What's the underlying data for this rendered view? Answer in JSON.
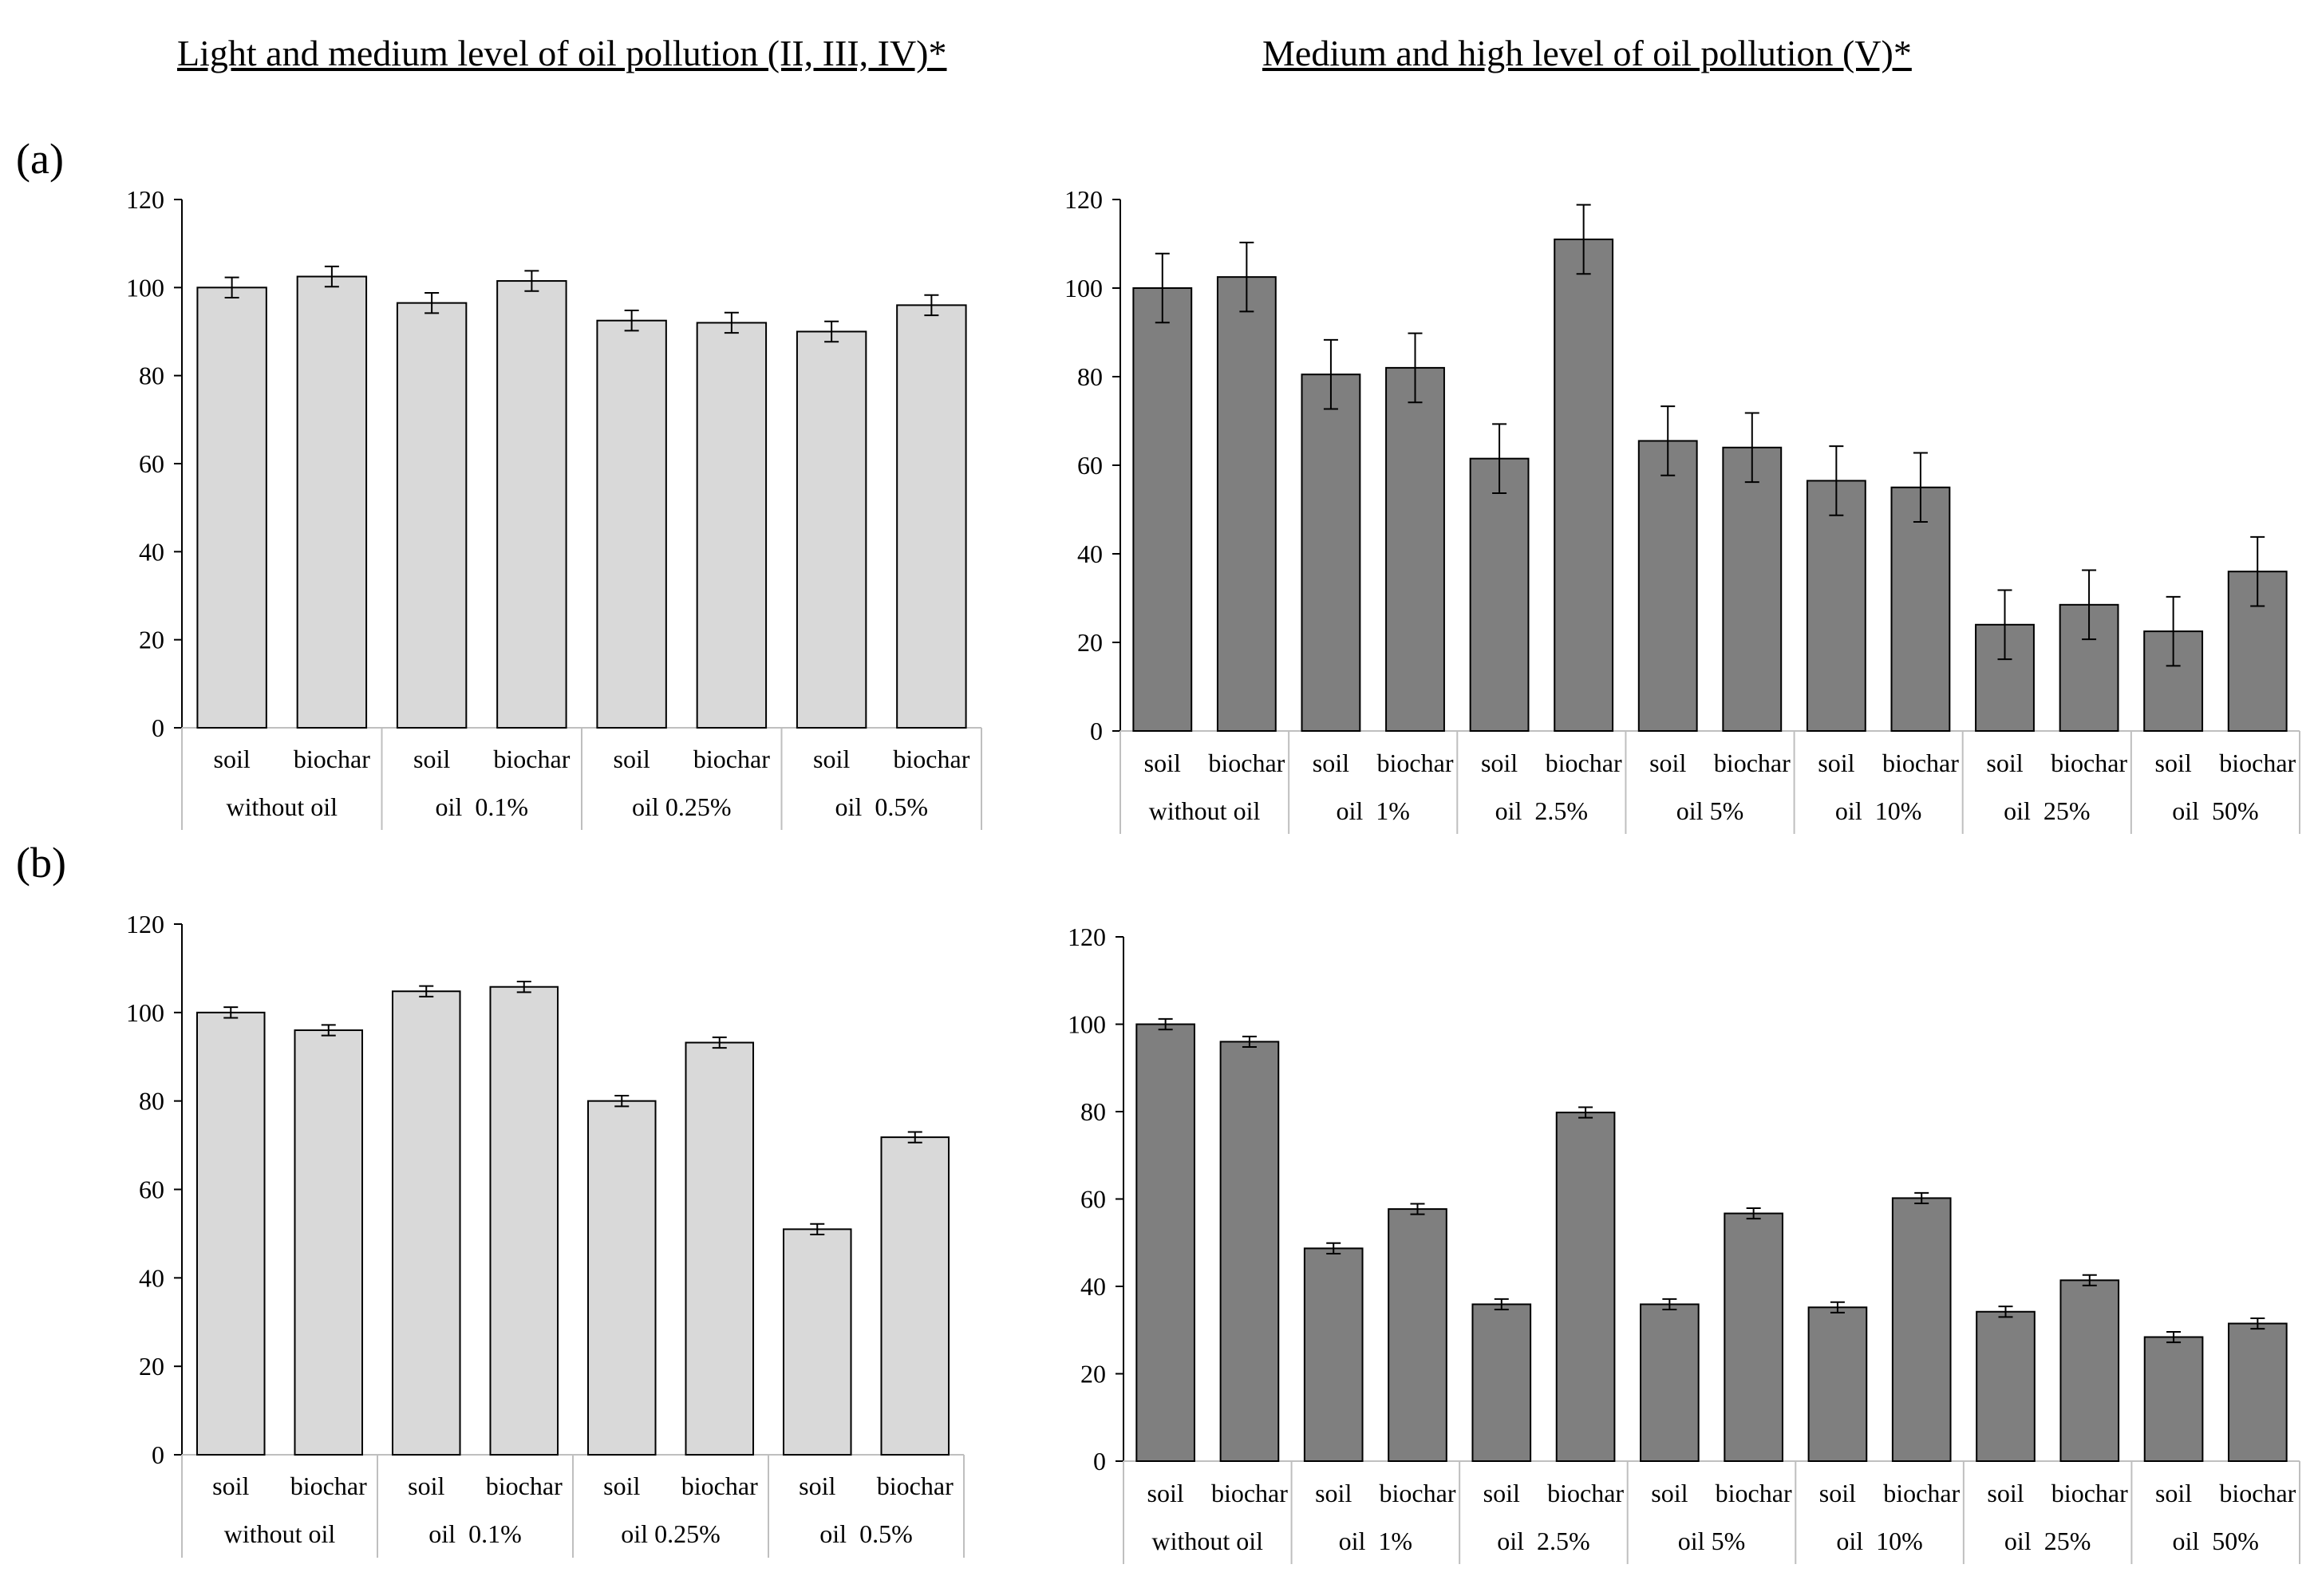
{
  "headings": {
    "left": "Light and medium level of oil pollution (II, III, IV)*",
    "right": "Medium and high level of oil pollution (V)*"
  },
  "row_labels": {
    "a": "(a)",
    "b": "(b)"
  },
  "colors": {
    "light_bar": "#d9d9d9",
    "dark_bar": "#7f7f7f",
    "axis": "#000000",
    "separator": "#bfbfbf"
  },
  "chart_data": [
    {
      "id": "a-left",
      "type": "bar",
      "ylim": [
        0,
        120
      ],
      "yticks": [
        0,
        20,
        40,
        60,
        80,
        100,
        120
      ],
      "xlabel": "",
      "ylabel": "",
      "categories": [
        "soil",
        "biochar",
        "soil",
        "biochar",
        "soil",
        "biochar",
        "soil",
        "biochar"
      ],
      "groups": [
        "without oil",
        "oil  0.1%",
        "oil 0.25%",
        "oil  0.5%"
      ],
      "values": [
        100,
        102.5,
        96.5,
        101.5,
        92.5,
        92,
        90,
        96
      ],
      "errors": [
        2.3,
        2.3,
        2.3,
        2.3,
        2.3,
        2.3,
        2.3,
        2.3
      ]
    },
    {
      "id": "a-right",
      "type": "bar",
      "ylim": [
        0,
        120
      ],
      "yticks": [
        0,
        20,
        40,
        60,
        80,
        100,
        120
      ],
      "xlabel": "",
      "ylabel": "",
      "categories": [
        "soil",
        "biochar",
        "soil",
        "biochar",
        "soil",
        "biochar",
        "soil",
        "biochar",
        "soil",
        "biochar",
        "soil",
        "biochar",
        "soil",
        "biochar"
      ],
      "groups": [
        "without oil",
        "oil  1%",
        "oil  2.5%",
        "oil 5%",
        "oil  10%",
        "oil  25%",
        "oil  50%"
      ],
      "values": [
        100,
        102.5,
        80.5,
        82,
        61.5,
        111,
        65.5,
        64,
        56.5,
        55,
        24,
        28.5,
        22.5,
        36
      ],
      "errors": [
        7.8,
        7.8,
        7.8,
        7.8,
        7.8,
        7.8,
        7.8,
        7.8,
        7.8,
        7.8,
        7.8,
        7.8,
        7.8,
        7.8
      ]
    },
    {
      "id": "b-left",
      "type": "bar",
      "ylim": [
        0,
        120
      ],
      "yticks": [
        0,
        20,
        40,
        60,
        80,
        100,
        120
      ],
      "xlabel": "",
      "ylabel": "",
      "categories": [
        "soil",
        "biochar",
        "soil",
        "biochar",
        "soil",
        "biochar",
        "soil",
        "biochar"
      ],
      "groups": [
        "without oil",
        "oil  0.1%",
        "oil 0.25%",
        "oil  0.5%"
      ],
      "values": [
        100,
        96,
        104.8,
        105.8,
        80,
        93.2,
        51,
        71.8
      ],
      "errors": [
        1.2,
        1.2,
        1.2,
        1.2,
        1.2,
        1.2,
        1.2,
        1.2
      ]
    },
    {
      "id": "b-right",
      "type": "bar",
      "ylim": [
        0,
        120
      ],
      "yticks": [
        0,
        20,
        40,
        60,
        80,
        100,
        120
      ],
      "xlabel": "",
      "ylabel": "",
      "categories": [
        "soil",
        "biochar",
        "soil",
        "biochar",
        "soil",
        "biochar",
        "soil",
        "biochar",
        "soil",
        "biochar",
        "soil",
        "biochar",
        "soil",
        "biochar"
      ],
      "groups": [
        "without oil",
        "oil  1%",
        "oil  2.5%",
        "oil 5%",
        "oil  10%",
        "oil  25%",
        "oil  50%"
      ],
      "values": [
        100,
        96,
        48.7,
        57.7,
        35.9,
        79.8,
        35.9,
        56.7,
        35.2,
        60.2,
        34.2,
        41.4,
        28.4,
        31.5
      ],
      "errors": [
        1.2,
        1.2,
        1.2,
        1.2,
        1.2,
        1.2,
        1.2,
        1.2,
        1.2,
        1.2,
        1.2,
        1.2,
        1.2,
        1.2
      ]
    }
  ]
}
